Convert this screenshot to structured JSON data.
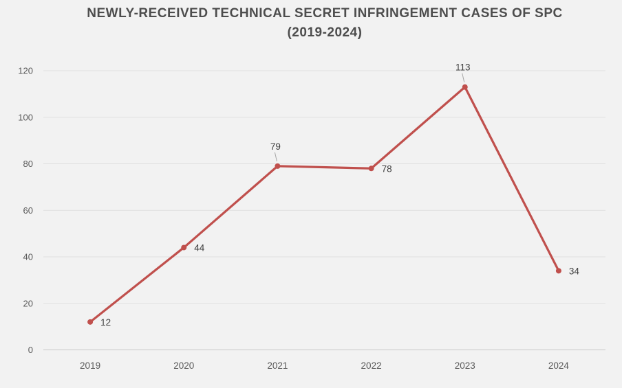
{
  "chart_data": {
    "type": "line",
    "title": "NEWLY-RECEIVED TECHNICAL SECRET INFRINGEMENT CASES OF SPC",
    "subtitle": "(2019-2024)",
    "categories": [
      "2019",
      "2020",
      "2021",
      "2022",
      "2023",
      "2024"
    ],
    "values": [
      12,
      44,
      79,
      78,
      113,
      34
    ],
    "label_positions": [
      "right",
      "right",
      "above",
      "right",
      "above",
      "right"
    ],
    "xlabel": "",
    "ylabel": "",
    "ylim": [
      0,
      120
    ],
    "yticks": [
      0,
      20,
      40,
      60,
      80,
      100,
      120
    ],
    "grid": true,
    "legend": "none",
    "colors": {
      "background": "#f2f2f2",
      "line": "#c0504d",
      "marker": "#c0504d",
      "gridline": "#e0e0e0",
      "axis_line": "#c6c6c6",
      "tick_label": "#595959",
      "category_label": "#595959",
      "data_label": "#3f3f3f",
      "title": "#4d4d4d",
      "leader_line": "#a6a6a6"
    }
  }
}
